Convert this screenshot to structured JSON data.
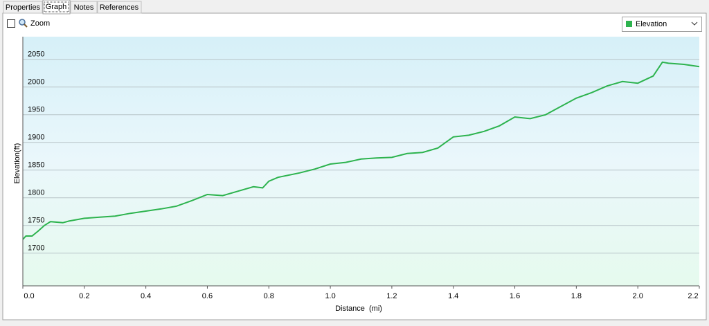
{
  "tabs": [
    "Properties",
    "Graph",
    "Notes",
    "References"
  ],
  "zoom_label": "Zoom",
  "chart_data": {
    "type": "line",
    "xlabel": "Distance  (mi)",
    "ylabel": "Elevation(ft)",
    "x": [
      0,
      0.01,
      0.03,
      0.05,
      0.07,
      0.09,
      0.13,
      0.15,
      0.2,
      0.25,
      0.3,
      0.35,
      0.4,
      0.45,
      0.5,
      0.55,
      0.6,
      0.65,
      0.7,
      0.75,
      0.78,
      0.8,
      0.83,
      0.9,
      0.95,
      1.0,
      1.05,
      1.1,
      1.15,
      1.2,
      1.25,
      1.3,
      1.35,
      1.4,
      1.45,
      1.5,
      1.55,
      1.6,
      1.65,
      1.7,
      1.75,
      1.8,
      1.85,
      1.9,
      1.95,
      2.0,
      2.05,
      2.08,
      2.1,
      2.15,
      2.2
    ],
    "series": [
      {
        "name": "Elevation",
        "color": "#2db34e",
        "values": [
          1725,
          1731,
          1731,
          1740,
          1750,
          1757,
          1755,
          1758,
          1763,
          1765,
          1767,
          1772,
          1776,
          1780,
          1785,
          1795,
          1806,
          1804,
          1812,
          1820,
          1818,
          1830,
          1837,
          1845,
          1852,
          1861,
          1864,
          1870,
          1872,
          1873,
          1880,
          1882,
          1890,
          1910,
          1913,
          1920,
          1930,
          1946,
          1943,
          1950,
          1965,
          1980,
          1990,
          2002,
          2010,
          2007,
          2020,
          2045,
          2043,
          2041,
          2037
        ]
      }
    ],
    "xlim": [
      0,
      2.2
    ],
    "ylim": [
      1641,
      2091
    ],
    "xticks": [
      {
        "value": 0,
        "label": "0.0"
      },
      0.2,
      0.4,
      0.6,
      0.8,
      {
        "value": 1,
        "label": "1.0"
      },
      1.2,
      1.4,
      1.6,
      1.8,
      {
        "value": 2,
        "label": "2.0"
      },
      2.2
    ],
    "yticks": [
      1700,
      1750,
      1800,
      1850,
      1900,
      1950,
      2000,
      2050
    ],
    "grid": true
  }
}
